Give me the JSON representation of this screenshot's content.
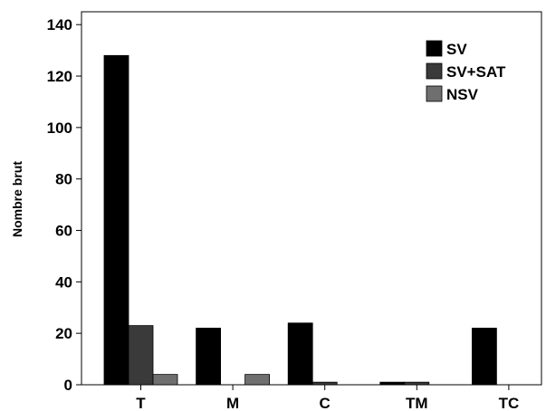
{
  "chart_data": {
    "type": "bar",
    "title": "",
    "xlabel": "",
    "ylabel": "Nombre brut",
    "ylim": [
      0,
      145
    ],
    "yticks": [
      0,
      20,
      40,
      60,
      80,
      100,
      120,
      140
    ],
    "categories": [
      "T",
      "M",
      "C",
      "TM",
      "TC"
    ],
    "series": [
      {
        "name": "SV",
        "color": "#000000",
        "values": [
          128,
          22,
          24,
          1,
          22
        ]
      },
      {
        "name": "SV+SAT",
        "color": "#3a3a3a",
        "values": [
          23,
          0,
          1,
          1,
          0
        ]
      },
      {
        "name": "NSV",
        "color": "#6f6f6f",
        "values": [
          4,
          4,
          0,
          0,
          0
        ]
      }
    ],
    "grid": false,
    "legend_position": "top-right"
  }
}
